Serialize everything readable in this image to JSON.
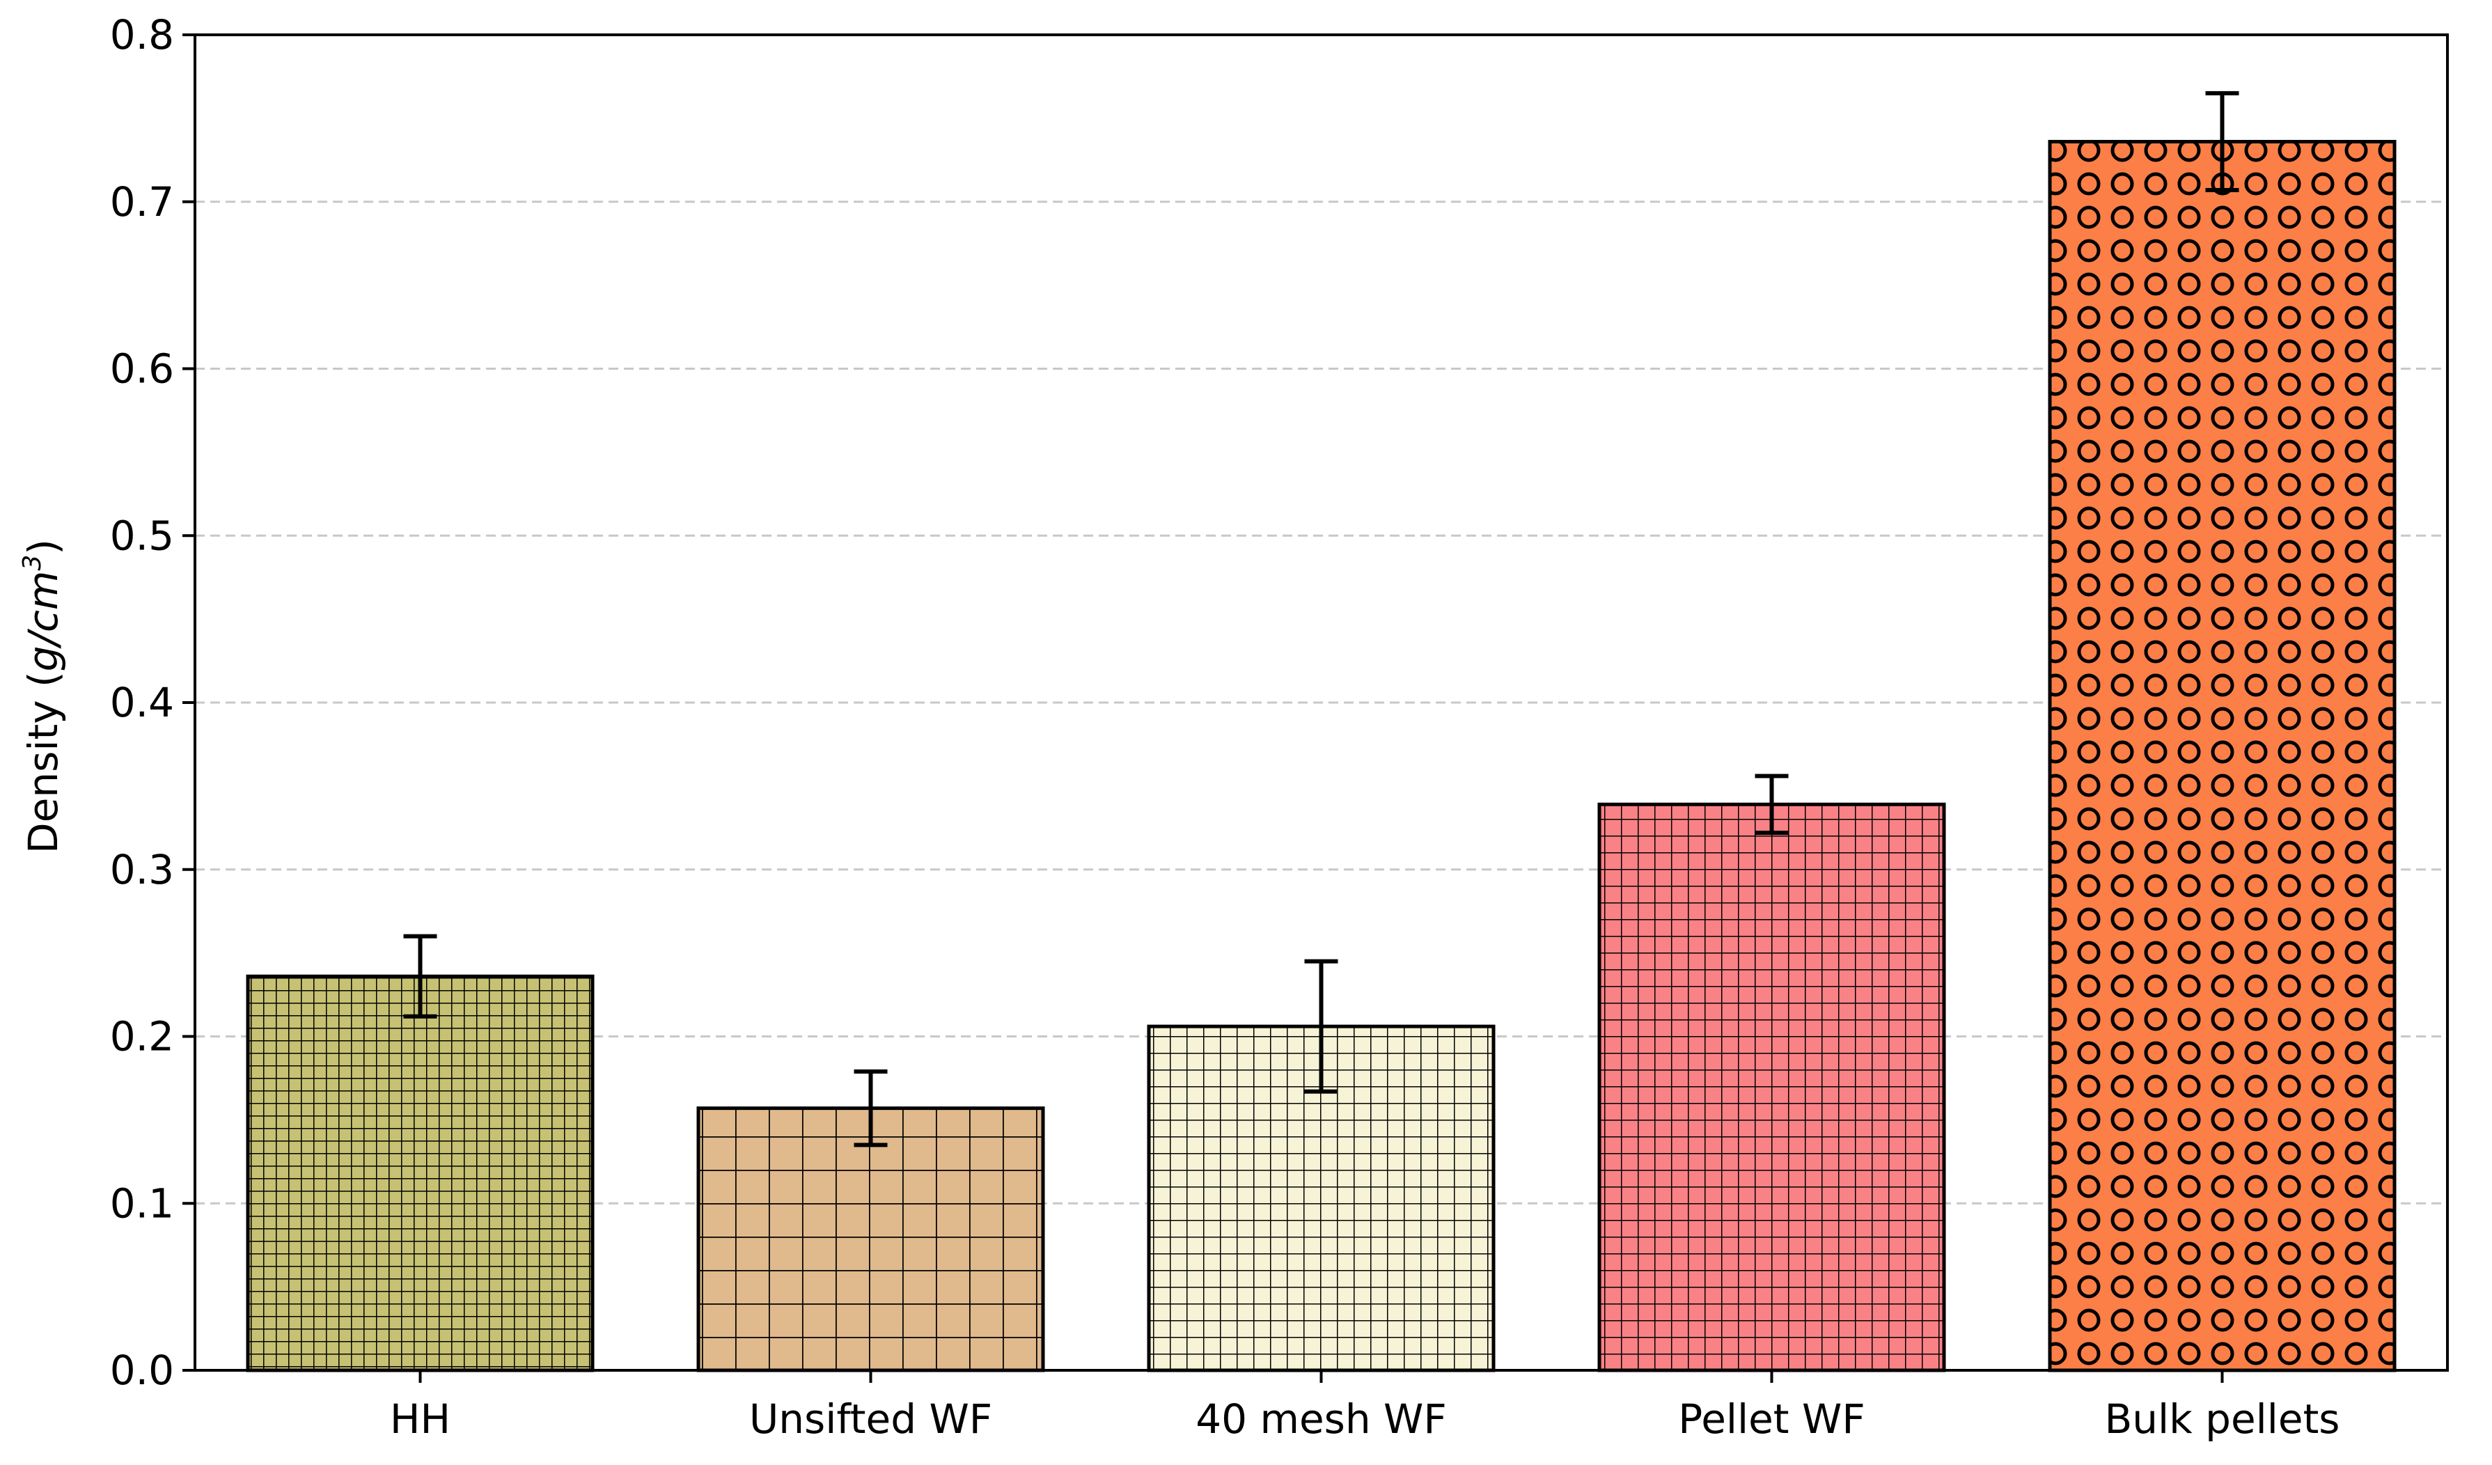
{
  "chart_data": {
    "type": "bar",
    "categories": [
      "HH",
      "Unsifted WF",
      "40 mesh WF",
      "Pellet WF",
      "Bulk pellets"
    ],
    "values": [
      0.236,
      0.157,
      0.206,
      0.339,
      0.736
    ],
    "errors": [
      0.024,
      0.022,
      0.039,
      0.017,
      0.029
    ],
    "colors": [
      "#c7c273",
      "#e0b98c",
      "#f6f3d6",
      "#f98286",
      "#fb7f47"
    ],
    "patterns": [
      "fine-grid",
      "coarse-grid",
      "medium-grid",
      "medium-grid",
      "circles"
    ],
    "ylabel_main": "Density (",
    "ylabel_unit": "g/cm",
    "ylabel_sup": "3",
    "ylabel_close": ")",
    "xlabel": "",
    "ylim": [
      0,
      0.8
    ],
    "yticks": [
      "0.0",
      "0.1",
      "0.2",
      "0.3",
      "0.4",
      "0.5",
      "0.6",
      "0.7",
      "0.8"
    ],
    "grid": true
  }
}
